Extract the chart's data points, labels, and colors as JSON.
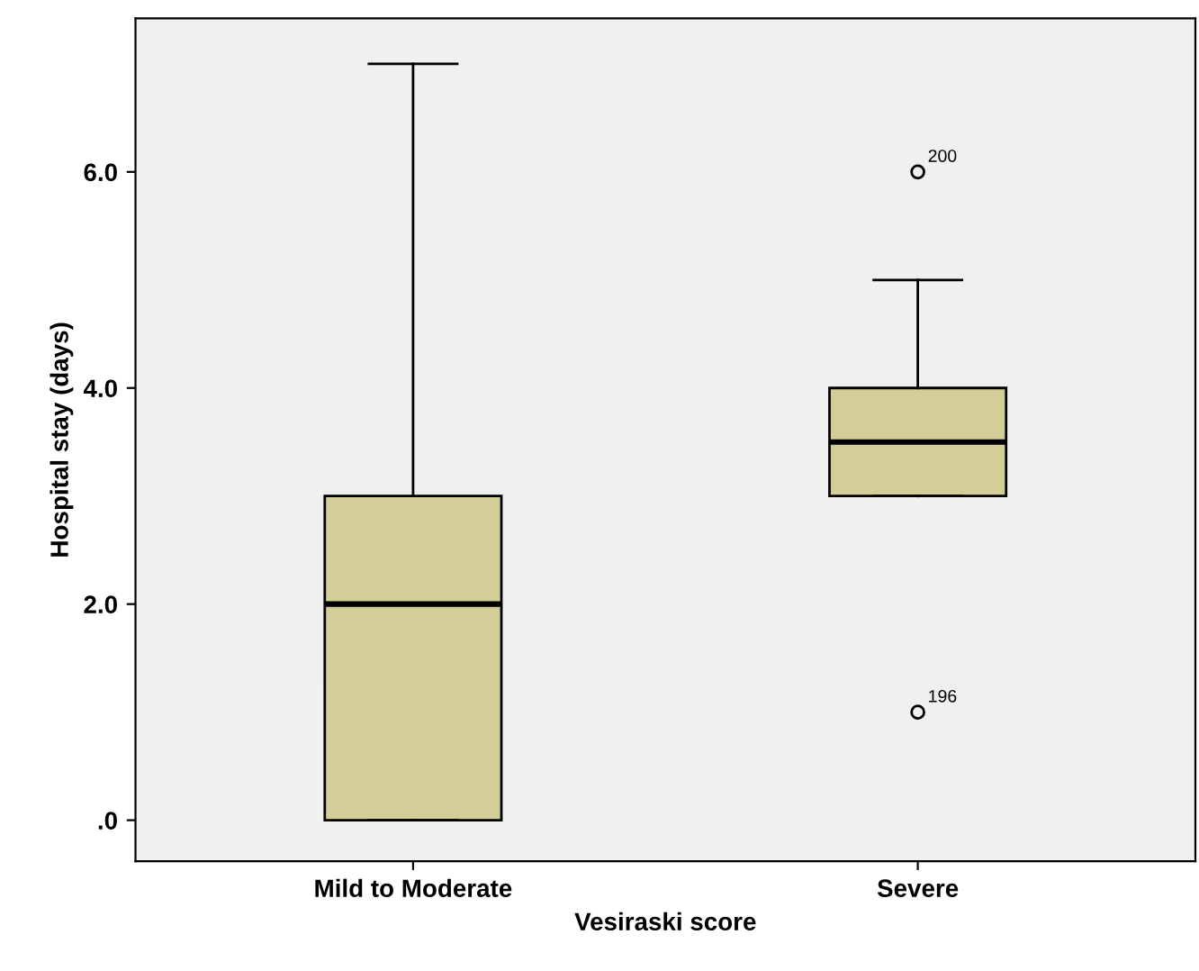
{
  "chart_data": {
    "type": "box",
    "xlabel": "Vesiraski score",
    "ylabel": "Hospital stay (days)",
    "categories": [
      "Mild to Moderate",
      "Severe"
    ],
    "boxes": [
      {
        "low": 0,
        "q1": 0,
        "median": 2,
        "q3": 3,
        "high": 7
      },
      {
        "low": 3,
        "q1": 3,
        "median": 3.5,
        "q3": 4,
        "high": 5,
        "outliers": [
          6,
          1
        ]
      }
    ],
    "color": "#d3ce97",
    "ylim": [
      -0.38,
      7.42
    ],
    "yticks": [
      {
        "value": 0,
        "label": ".0"
      },
      {
        "value": 2,
        "label": "2.0"
      },
      {
        "value": 4,
        "label": "4.0"
      },
      {
        "value": 6,
        "label": "6.0"
      }
    ],
    "annotations": [
      "200",
      "196"
    ],
    "grid": false
  }
}
